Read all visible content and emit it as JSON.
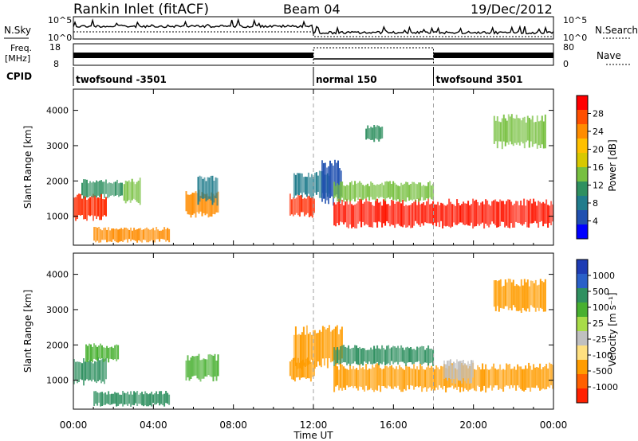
{
  "header": {
    "station": "Rankin Inlet (fitACF)",
    "beam": "Beam 04",
    "date": "19/Dec/2012"
  },
  "top_panels": {
    "nsky_label": "N.Sky",
    "nsky_ticks": [
      "10^5",
      "10^0"
    ],
    "nsearch_label": "N.Search",
    "freq_label_1": "Freq.",
    "freq_label_2": "[MHz]",
    "freq_ticks": [
      "18",
      "8"
    ],
    "nave_label": "Nave",
    "nave_ticks": [
      "80",
      "0"
    ],
    "cpid_label": "CPID"
  },
  "cpid_segments": [
    {
      "start_hour": 0.0,
      "end_hour": 12.0,
      "label": "twofsound -3501"
    },
    {
      "start_hour": 12.0,
      "end_hour": 18.0,
      "label": "normal 150"
    },
    {
      "start_hour": 18.0,
      "end_hour": 24.0,
      "label": "twofsound 3501"
    }
  ],
  "x_axis": {
    "title": "Time UT",
    "ticks": [
      "00:00",
      "04:00",
      "08:00",
      "12:00",
      "16:00",
      "20:00",
      "00:00"
    ],
    "range_hours": [
      0,
      24
    ],
    "mode_change_hours": [
      12,
      18
    ]
  },
  "chart_data": [
    {
      "type": "heatmap",
      "parameter": "power",
      "ylabel": "Slant Range [km]",
      "ylim": [
        180,
        4600
      ],
      "yticks": [
        1000,
        2000,
        3000,
        4000
      ],
      "colorbar": {
        "label": "Power [dB]",
        "ticks": [
          "28",
          "24",
          "20",
          "16",
          "12",
          "8",
          "4"
        ],
        "colors": [
          "#ff0000",
          "#ff4f00",
          "#ff8c00",
          "#ffc000",
          "#d8c800",
          "#77c040",
          "#2f9060",
          "#207c8c",
          "#2050b0",
          "#0000ff"
        ]
      },
      "echo_regions": [
        {
          "t0": 0.0,
          "t1": 1.6,
          "r0": 850,
          "r1": 1650,
          "color": "#ff2a00"
        },
        {
          "t0": 0.4,
          "t1": 2.4,
          "r0": 1500,
          "r1": 2050,
          "color": "#2f9060"
        },
        {
          "t0": 1.0,
          "t1": 4.8,
          "r0": 250,
          "r1": 700,
          "color": "#ff8c00"
        },
        {
          "t0": 2.5,
          "t1": 3.3,
          "r0": 1300,
          "r1": 2100,
          "color": "#77c040"
        },
        {
          "t0": 5.6,
          "t1": 7.2,
          "r0": 950,
          "r1": 1750,
          "color": "#ff8c00"
        },
        {
          "t0": 6.2,
          "t1": 7.2,
          "r0": 1300,
          "r1": 2200,
          "color": "#207c8c"
        },
        {
          "t0": 10.8,
          "t1": 12.0,
          "r0": 950,
          "r1": 1650,
          "color": "#ff2a00"
        },
        {
          "t0": 11.0,
          "t1": 12.8,
          "r0": 1500,
          "r1": 2300,
          "color": "#207c8c"
        },
        {
          "t0": 12.4,
          "t1": 13.4,
          "r0": 1300,
          "r1": 2600,
          "color": "#2050b0"
        },
        {
          "t0": 13.0,
          "t1": 24.0,
          "r0": 650,
          "r1": 1500,
          "color": "#ff1500"
        },
        {
          "t0": 13.0,
          "t1": 18.0,
          "r0": 1400,
          "r1": 2000,
          "color": "#77c040"
        },
        {
          "t0": 14.6,
          "t1": 15.4,
          "r0": 3100,
          "r1": 3600,
          "color": "#2f9060"
        },
        {
          "t0": 21.0,
          "t1": 23.6,
          "r0": 2900,
          "r1": 3900,
          "color": "#77c040"
        }
      ]
    },
    {
      "type": "heatmap",
      "parameter": "velocity",
      "ylabel": "Slant Range [km]",
      "ylim": [
        180,
        4600
      ],
      "yticks": [
        1000,
        2000,
        3000,
        4000
      ],
      "colorbar": {
        "label": "Velocity [m s⁻¹]",
        "ticks": [
          "1000",
          "500",
          "100",
          "25",
          "-25",
          "-100",
          "-500",
          "-1000"
        ],
        "colors": [
          "#1e3cb4",
          "#2a60c8",
          "#2f9060",
          "#48b030",
          "#a8dc48",
          "#c0c0c0",
          "#ffe080",
          "#ff9c00",
          "#ff6000",
          "#ff2000"
        ]
      },
      "echo_regions": [
        {
          "t0": 0.0,
          "t1": 1.6,
          "r0": 850,
          "r1": 1650,
          "color": "#2f9060"
        },
        {
          "t0": 0.6,
          "t1": 2.2,
          "r0": 1500,
          "r1": 2050,
          "color": "#48b030"
        },
        {
          "t0": 1.0,
          "t1": 4.8,
          "r0": 250,
          "r1": 700,
          "color": "#2f9060"
        },
        {
          "t0": 5.6,
          "t1": 7.2,
          "r0": 950,
          "r1": 1750,
          "color": "#48b030"
        },
        {
          "t0": 10.8,
          "t1": 12.0,
          "r0": 950,
          "r1": 1650,
          "color": "#ff9c00"
        },
        {
          "t0": 11.0,
          "t1": 13.4,
          "r0": 1300,
          "r1": 2600,
          "color": "#ff9c00"
        },
        {
          "t0": 13.0,
          "t1": 24.0,
          "r0": 650,
          "r1": 1500,
          "color": "#ff9c00"
        },
        {
          "t0": 13.0,
          "t1": 18.0,
          "r0": 1400,
          "r1": 2000,
          "color": "#2f9060"
        },
        {
          "t0": 18.5,
          "t1": 20.0,
          "r0": 900,
          "r1": 1600,
          "color": "#c0c0c0"
        },
        {
          "t0": 21.0,
          "t1": 23.6,
          "r0": 2900,
          "r1": 3900,
          "color": "#ff9c00"
        }
      ]
    }
  ]
}
